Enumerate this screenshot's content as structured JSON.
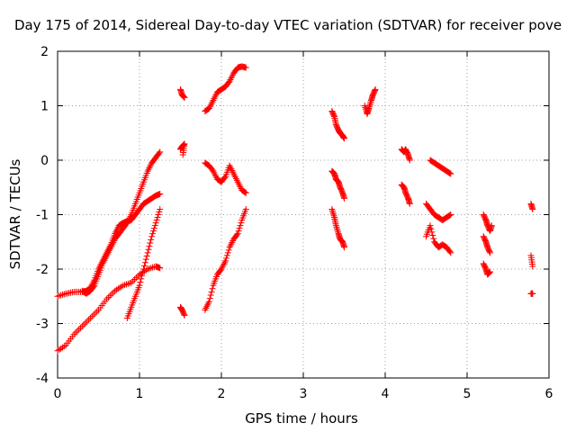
{
  "chart_data": {
    "type": "scatter",
    "title": "Day 175 of 2014, Sidereal Day-to-day VTEC variation (SDTVAR) for receiver pove",
    "xlabel": "GPS time / hours",
    "ylabel": "SDTVAR / TECUs",
    "xlim": [
      0,
      6
    ],
    "ylim": [
      -4,
      2
    ],
    "xticks": [
      "0",
      "1",
      "2",
      "3",
      "4",
      "5",
      "6"
    ],
    "yticks": [
      "-4",
      "-3",
      "-2",
      "-1",
      "0",
      "1",
      "2"
    ],
    "grid": true,
    "marker": "plus",
    "color": "#ff0000",
    "segments": [
      [
        [
          0.0,
          -3.5
        ],
        [
          0.1,
          -3.4
        ],
        [
          0.2,
          -3.2
        ],
        [
          0.3,
          -3.05
        ],
        [
          0.4,
          -2.9
        ],
        [
          0.5,
          -2.75
        ],
        [
          0.6,
          -2.55
        ],
        [
          0.7,
          -2.4
        ],
        [
          0.8,
          -2.3
        ],
        [
          0.9,
          -2.25
        ],
        [
          1.0,
          -2.1
        ],
        [
          1.1,
          -2.0
        ],
        [
          1.2,
          -1.95
        ],
        [
          1.25,
          -1.98
        ]
      ],
      [
        [
          0.0,
          -2.5
        ],
        [
          0.1,
          -2.45
        ],
        [
          0.2,
          -2.42
        ],
        [
          0.3,
          -2.42
        ],
        [
          0.35,
          -2.4
        ],
        [
          0.4,
          -2.35
        ],
        [
          0.45,
          -2.2
        ],
        [
          0.5,
          -2.0
        ],
        [
          0.55,
          -1.85
        ],
        [
          0.6,
          -1.7
        ],
        [
          0.65,
          -1.55
        ],
        [
          0.7,
          -1.35
        ],
        [
          0.75,
          -1.2
        ],
        [
          0.8,
          -1.15
        ],
        [
          0.85,
          -1.12
        ],
        [
          0.9,
          -1.1
        ],
        [
          0.95,
          -1.0
        ],
        [
          1.0,
          -0.9
        ],
        [
          1.05,
          -0.8
        ],
        [
          1.1,
          -0.75
        ],
        [
          1.15,
          -0.7
        ],
        [
          1.2,
          -0.65
        ],
        [
          1.25,
          -0.62
        ]
      ],
      [
        [
          0.3,
          -2.4
        ],
        [
          0.35,
          -2.45
        ],
        [
          0.4,
          -2.4
        ],
        [
          0.45,
          -2.3
        ],
        [
          0.5,
          -2.1
        ],
        [
          0.55,
          -1.9
        ],
        [
          0.6,
          -1.75
        ],
        [
          0.65,
          -1.6
        ],
        [
          0.7,
          -1.45
        ],
        [
          0.75,
          -1.35
        ],
        [
          0.8,
          -1.25
        ],
        [
          0.85,
          -1.15
        ],
        [
          0.9,
          -1.0
        ],
        [
          0.95,
          -0.8
        ],
        [
          1.0,
          -0.6
        ],
        [
          1.05,
          -0.4
        ],
        [
          1.1,
          -0.2
        ],
        [
          1.15,
          -0.05
        ],
        [
          1.2,
          0.05
        ],
        [
          1.25,
          0.15
        ]
      ],
      [
        [
          0.85,
          -2.9
        ],
        [
          0.9,
          -2.7
        ],
        [
          0.95,
          -2.5
        ],
        [
          1.0,
          -2.3
        ],
        [
          1.05,
          -2.0
        ],
        [
          1.1,
          -1.7
        ],
        [
          1.15,
          -1.4
        ],
        [
          1.2,
          -1.15
        ],
        [
          1.25,
          -0.9
        ]
      ],
      [
        [
          1.5,
          1.3
        ],
        [
          1.52,
          1.2
        ],
        [
          1.55,
          1.15
        ]
      ],
      [
        [
          1.5,
          0.2
        ],
        [
          1.52,
          0.25
        ],
        [
          1.55,
          0.3
        ],
        [
          1.53,
          0.1
        ]
      ],
      [
        [
          1.5,
          -2.7
        ],
        [
          1.52,
          -2.75
        ],
        [
          1.55,
          -2.85
        ]
      ],
      [
        [
          1.8,
          0.9
        ],
        [
          1.85,
          0.95
        ],
        [
          1.9,
          1.1
        ],
        [
          1.95,
          1.25
        ],
        [
          2.0,
          1.3
        ],
        [
          2.05,
          1.35
        ],
        [
          2.1,
          1.45
        ],
        [
          2.15,
          1.6
        ],
        [
          2.2,
          1.7
        ],
        [
          2.25,
          1.72
        ],
        [
          2.3,
          1.7
        ]
      ],
      [
        [
          1.8,
          -0.05
        ],
        [
          1.85,
          -0.1
        ],
        [
          1.9,
          -0.2
        ],
        [
          1.95,
          -0.35
        ],
        [
          2.0,
          -0.4
        ],
        [
          2.05,
          -0.3
        ],
        [
          2.1,
          -0.1
        ],
        [
          2.15,
          -0.25
        ],
        [
          2.2,
          -0.4
        ],
        [
          2.25,
          -0.55
        ],
        [
          2.3,
          -0.6
        ]
      ],
      [
        [
          1.8,
          -2.75
        ],
        [
          1.85,
          -2.6
        ],
        [
          1.9,
          -2.3
        ],
        [
          1.95,
          -2.1
        ],
        [
          2.0,
          -2.0
        ],
        [
          2.05,
          -1.85
        ],
        [
          2.1,
          -1.6
        ],
        [
          2.15,
          -1.45
        ],
        [
          2.2,
          -1.35
        ],
        [
          2.25,
          -1.1
        ],
        [
          2.3,
          -0.9
        ]
      ],
      [
        [
          3.35,
          0.9
        ],
        [
          3.38,
          0.8
        ],
        [
          3.4,
          0.65
        ],
        [
          3.43,
          0.55
        ],
        [
          3.45,
          0.5
        ],
        [
          3.48,
          0.45
        ],
        [
          3.5,
          0.4
        ]
      ],
      [
        [
          3.35,
          -0.2
        ],
        [
          3.38,
          -0.25
        ],
        [
          3.4,
          -0.35
        ],
        [
          3.43,
          -0.4
        ],
        [
          3.45,
          -0.5
        ],
        [
          3.48,
          -0.6
        ],
        [
          3.5,
          -0.7
        ]
      ],
      [
        [
          3.35,
          -0.9
        ],
        [
          3.38,
          -1.05
        ],
        [
          3.4,
          -1.2
        ],
        [
          3.43,
          -1.35
        ],
        [
          3.45,
          -1.45
        ],
        [
          3.48,
          -1.5
        ],
        [
          3.5,
          -1.6
        ]
      ],
      [
        [
          3.75,
          1.0
        ],
        [
          3.78,
          0.85
        ],
        [
          3.8,
          0.95
        ],
        [
          3.83,
          1.1
        ],
        [
          3.85,
          1.2
        ],
        [
          3.88,
          1.3
        ]
      ],
      [
        [
          4.2,
          0.2
        ],
        [
          4.23,
          0.15
        ],
        [
          4.25,
          0.2
        ],
        [
          4.28,
          0.1
        ],
        [
          4.3,
          0.0
        ]
      ],
      [
        [
          4.2,
          -0.45
        ],
        [
          4.23,
          -0.5
        ],
        [
          4.25,
          -0.6
        ],
        [
          4.28,
          -0.7
        ],
        [
          4.3,
          -0.8
        ]
      ],
      [
        [
          4.55,
          0.0
        ],
        [
          4.6,
          -0.05
        ],
        [
          4.65,
          -0.1
        ],
        [
          4.7,
          -0.15
        ],
        [
          4.75,
          -0.2
        ],
        [
          4.8,
          -0.25
        ]
      ],
      [
        [
          4.5,
          -0.8
        ],
        [
          4.55,
          -0.9
        ],
        [
          4.6,
          -1.0
        ],
        [
          4.65,
          -1.05
        ],
        [
          4.7,
          -1.1
        ],
        [
          4.75,
          -1.05
        ],
        [
          4.8,
          -1.0
        ]
      ],
      [
        [
          4.5,
          -1.4
        ],
        [
          4.55,
          -1.2
        ],
        [
          4.6,
          -1.5
        ],
        [
          4.65,
          -1.6
        ],
        [
          4.7,
          -1.55
        ],
        [
          4.75,
          -1.6
        ],
        [
          4.8,
          -1.7
        ]
      ],
      [
        [
          5.2,
          -1.0
        ],
        [
          5.23,
          -1.1
        ],
        [
          5.25,
          -1.2
        ],
        [
          5.28,
          -1.3
        ],
        [
          5.3,
          -1.2
        ]
      ],
      [
        [
          5.2,
          -1.4
        ],
        [
          5.23,
          -1.5
        ],
        [
          5.25,
          -1.6
        ],
        [
          5.28,
          -1.7
        ]
      ],
      [
        [
          5.2,
          -1.9
        ],
        [
          5.23,
          -2.0
        ],
        [
          5.25,
          -2.1
        ],
        [
          5.28,
          -2.05
        ]
      ],
      [
        [
          5.78,
          -0.8
        ],
        [
          5.8,
          -0.9
        ]
      ],
      [
        [
          5.78,
          -1.75
        ],
        [
          5.8,
          -1.95
        ]
      ],
      [
        [
          5.78,
          -2.45
        ],
        [
          5.8,
          -2.45
        ]
      ]
    ]
  }
}
